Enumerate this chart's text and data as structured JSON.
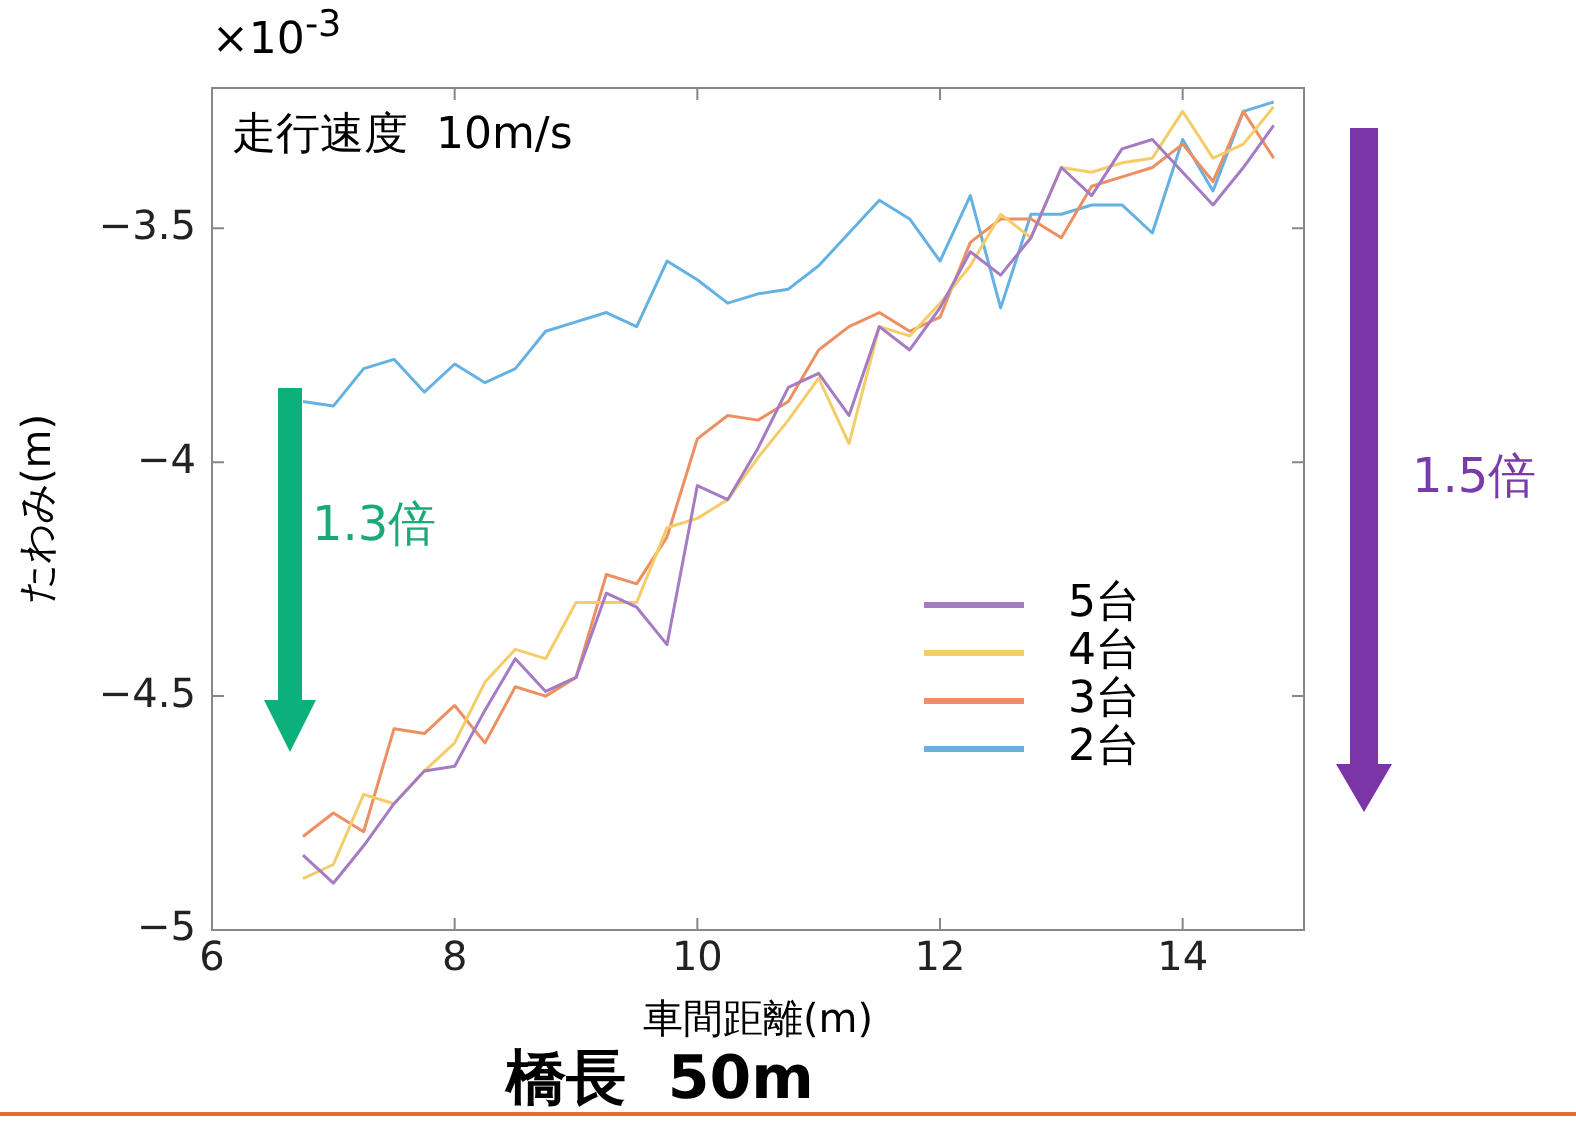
{
  "chart_data": {
    "type": "line",
    "title": "橋長  50m",
    "xlabel": "車間距離(m)",
    "ylabel": "たわみ(m)",
    "annotations": [
      "×10$^{-3}$",
      "走行速度  10m/s",
      "1.3倍",
      "1.5倍"
    ],
    "x": [
      6.75,
      7,
      7.25,
      7.5,
      7.75,
      8,
      8.25,
      8.5,
      8.75,
      9,
      9.25,
      9.5,
      9.75,
      10,
      10.25,
      10.5,
      10.75,
      11,
      11.25,
      11.5,
      11.75,
      12,
      12.25,
      12.5,
      12.75,
      13,
      13.25,
      13.5,
      13.75,
      14,
      14.25,
      14.5,
      14.75
    ],
    "xlim": [
      6,
      15
    ],
    "xticks": [
      6,
      8,
      10,
      12,
      14
    ],
    "ylim": [
      -5,
      -3.2
    ],
    "yticks": [
      {
        "value": -5,
        "label": "−5"
      },
      {
        "value": -4.5,
        "label": "−4.5"
      },
      {
        "value": -4,
        "label": "−4"
      },
      {
        "value": -3.5,
        "label": "−3.5"
      }
    ],
    "legend": "bottom right",
    "marker": "none",
    "line_style": "solid",
    "series": [
      {
        "name": "5台",
        "color": "#a57bc4",
        "values": [
          -4.84,
          -4.9,
          -4.82,
          -4.73,
          -4.66,
          -4.65,
          -4.53,
          -4.42,
          -4.49,
          -4.46,
          -4.28,
          -4.31,
          -4.39,
          -4.05,
          -4.08,
          -3.97,
          -3.84,
          -3.81,
          -3.9,
          -3.71,
          -3.76,
          -3.67,
          -3.55,
          -3.6,
          -3.52,
          -3.37,
          -3.43,
          -3.33,
          -3.31,
          -3.38,
          -3.45,
          -3.37,
          -3.28
        ]
      },
      {
        "name": "4台",
        "color": "#f5cc6a",
        "values": [
          -4.89,
          -4.86,
          -4.71,
          -4.73,
          -4.66,
          -4.6,
          -4.47,
          -4.4,
          -4.42,
          -4.3,
          -4.3,
          -4.3,
          -4.14,
          -4.12,
          -4.08,
          -3.99,
          -3.91,
          -3.82,
          -3.96,
          -3.71,
          -3.73,
          -3.66,
          -3.58,
          -3.47,
          -3.52,
          -3.37,
          -3.38,
          -3.36,
          -3.35,
          -3.25,
          -3.35,
          -3.32,
          -3.24
        ]
      },
      {
        "name": "3台",
        "color": "#ec9062",
        "values": [
          -4.8,
          -4.75,
          -4.79,
          -4.57,
          -4.58,
          -4.52,
          -4.6,
          -4.48,
          -4.5,
          -4.46,
          -4.24,
          -4.26,
          -4.16,
          -3.95,
          -3.9,
          -3.91,
          -3.87,
          -3.76,
          -3.71,
          -3.68,
          -3.72,
          -3.69,
          -3.53,
          -3.48,
          -3.48,
          -3.52,
          -3.41,
          -3.39,
          -3.37,
          -3.32,
          -3.4,
          -3.25,
          -3.35
        ]
      },
      {
        "name": "2台",
        "color": "#65b2e2",
        "values": [
          -3.87,
          -3.88,
          -3.8,
          -3.78,
          -3.85,
          -3.79,
          -3.83,
          -3.8,
          -3.72,
          -3.7,
          -3.68,
          -3.71,
          -3.57,
          -3.61,
          -3.66,
          -3.64,
          -3.63,
          -3.58,
          -3.51,
          -3.44,
          -3.48,
          -3.57,
          -3.43,
          -3.67,
          -3.47,
          -3.47,
          -3.45,
          -3.45,
          -3.51,
          -3.31,
          -3.42,
          -3.25,
          -3.23
        ]
      }
    ]
  }
}
